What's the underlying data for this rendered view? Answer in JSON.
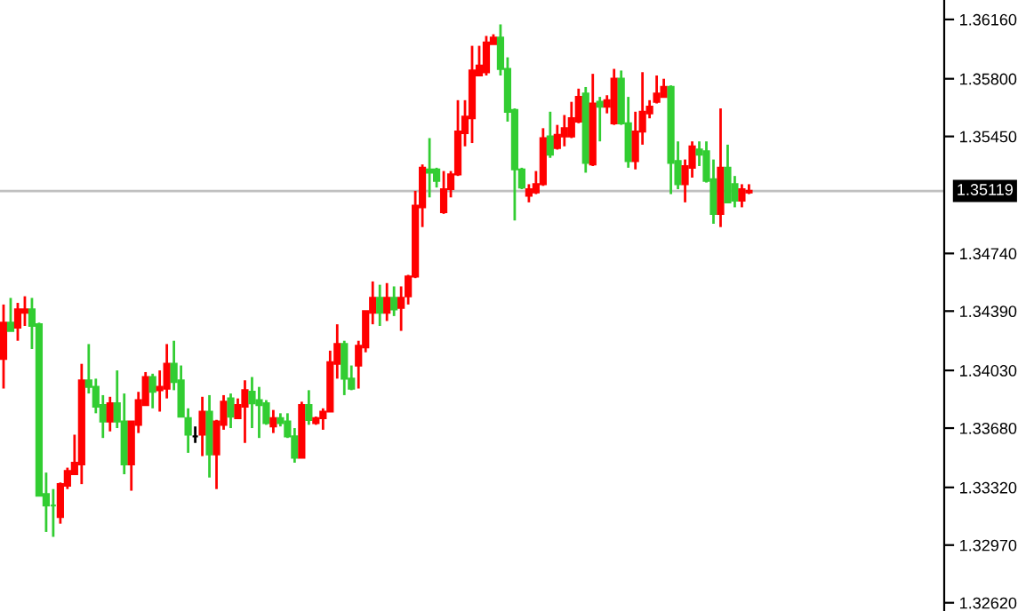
{
  "chart_data": {
    "type": "candlestick",
    "categories": [
      null,
      null,
      null,
      null,
      null,
      null,
      null,
      null,
      null,
      null,
      null,
      null,
      null,
      null,
      null,
      null,
      null,
      null,
      null,
      null,
      null,
      null,
      null,
      null,
      null,
      null,
      null,
      null,
      null,
      null,
      null,
      null,
      null,
      null,
      null,
      null,
      null,
      null,
      null,
      null,
      null,
      null,
      null,
      null,
      null,
      null,
      null,
      null,
      null,
      null,
      null,
      null,
      null,
      null,
      null,
      null,
      null,
      null,
      null,
      null,
      null,
      null,
      null,
      null,
      null,
      null,
      null,
      null,
      null,
      null,
      null,
      null,
      null,
      null,
      null,
      null,
      null,
      null,
      null,
      null,
      null,
      null,
      null,
      null,
      null,
      null,
      null,
      null,
      null,
      null,
      null,
      null,
      null,
      null,
      null,
      null,
      null,
      null,
      null,
      null,
      null,
      null,
      null,
      null,
      null,
      null,
      null,
      null,
      null,
      null,
      null,
      null,
      null,
      null,
      null,
      null,
      null,
      null,
      null,
      null,
      null,
      null,
      null,
      null,
      null,
      null,
      null,
      null,
      null,
      null,
      null,
      null,
      null
    ],
    "ohlc": [
      [
        1.341,
        1.3443,
        1.3392,
        1.3432
      ],
      [
        1.3432,
        1.3447,
        1.3427,
        1.3427
      ],
      [
        1.3429,
        1.3444,
        1.3421,
        1.344
      ],
      [
        1.3438,
        1.3448,
        1.343,
        1.344
      ],
      [
        1.344,
        1.3447,
        1.3416,
        1.343
      ],
      [
        1.3431,
        1.3432,
        1.3327,
        1.3327
      ],
      [
        1.3328,
        1.3341,
        1.3305,
        1.3321
      ],
      [
        1.3321,
        1.3331,
        1.3302,
        1.3321
      ],
      [
        1.3314,
        1.3335,
        1.331,
        1.3334
      ],
      [
        1.3333,
        1.3344,
        1.3331,
        1.3342
      ],
      [
        1.334,
        1.3364,
        1.334,
        1.3347
      ],
      [
        1.3346,
        1.3407,
        1.3334,
        1.3397
      ],
      [
        1.3397,
        1.3419,
        1.3389,
        1.3393
      ],
      [
        1.3393,
        1.3398,
        1.3377,
        1.3381
      ],
      [
        1.3382,
        1.3388,
        1.3362,
        1.3372
      ],
      [
        1.3372,
        1.3387,
        1.3366,
        1.3383
      ],
      [
        1.3383,
        1.3403,
        1.3368,
        1.3372
      ],
      [
        1.3372,
        1.3389,
        1.334,
        1.3346
      ],
      [
        1.3346,
        1.3372,
        1.333,
        1.3372
      ],
      [
        1.337,
        1.339,
        1.3365,
        1.3385
      ],
      [
        1.3382,
        1.3402,
        1.3382,
        1.3399
      ],
      [
        1.3399,
        1.3401,
        1.338,
        1.339
      ],
      [
        1.3391,
        1.3403,
        1.3378,
        1.3393
      ],
      [
        1.3392,
        1.3419,
        1.3386,
        1.3407
      ],
      [
        1.3407,
        1.3421,
        1.3391,
        1.3396
      ],
      [
        1.3397,
        1.3406,
        1.3375,
        1.3375
      ],
      [
        1.3374,
        1.338,
        1.3353,
        1.3364
      ],
      [
        1.3363,
        1.3369,
        1.3359,
        1.3363
      ],
      [
        1.3364,
        1.3387,
        1.3351,
        1.3378
      ],
      [
        1.3378,
        1.3388,
        1.3338,
        1.3352
      ],
      [
        1.3352,
        1.3373,
        1.3331,
        1.3372
      ],
      [
        1.337,
        1.3388,
        1.3367,
        1.3384
      ],
      [
        1.3386,
        1.3389,
        1.3368,
        1.3375
      ],
      [
        1.3374,
        1.3386,
        1.3374,
        1.3382
      ],
      [
        1.3381,
        1.3397,
        1.3359,
        1.3391
      ],
      [
        1.339,
        1.3399,
        1.3368,
        1.3383
      ],
      [
        1.3385,
        1.3393,
        1.3362,
        1.3382
      ],
      [
        1.3383,
        1.3385,
        1.337,
        1.3371
      ],
      [
        1.3369,
        1.3379,
        1.3365,
        1.3374
      ],
      [
        1.3374,
        1.3377,
        1.3369,
        1.3371
      ],
      [
        1.3372,
        1.3377,
        1.3362,
        1.3363
      ],
      [
        1.3363,
        1.3368,
        1.3347,
        1.335
      ],
      [
        1.335,
        1.3384,
        1.335,
        1.3382
      ],
      [
        1.3382,
        1.3391,
        1.337,
        1.3373
      ],
      [
        1.3371,
        1.3375,
        1.337,
        1.3374
      ],
      [
        1.3374,
        1.338,
        1.3367,
        1.3378
      ],
      [
        1.3378,
        1.3415,
        1.3378,
        1.3408
      ],
      [
        1.3407,
        1.3431,
        1.3398,
        1.3419
      ],
      [
        1.3419,
        1.3421,
        1.3388,
        1.3398
      ],
      [
        1.3398,
        1.3406,
        1.3391,
        1.3392
      ],
      [
        1.3406,
        1.3421,
        1.3392,
        1.3418
      ],
      [
        1.3417,
        1.3439,
        1.3414,
        1.3439
      ],
      [
        1.3438,
        1.3457,
        1.3431,
        1.3447
      ],
      [
        1.3447,
        1.3455,
        1.343,
        1.3438
      ],
      [
        1.3438,
        1.3456,
        1.3433,
        1.3447
      ],
      [
        1.3447,
        1.3454,
        1.3436,
        1.344
      ],
      [
        1.3441,
        1.3454,
        1.3427,
        1.3447
      ],
      [
        1.3448,
        1.3461,
        1.3443,
        1.346
      ],
      [
        1.346,
        1.3512,
        1.3459,
        1.3503
      ],
      [
        1.3502,
        1.3528,
        1.349,
        1.3526
      ],
      [
        1.3525,
        1.3544,
        1.3508,
        1.3523
      ],
      [
        1.3525,
        1.3526,
        1.3514,
        1.3518
      ],
      [
        1.3499,
        1.3524,
        1.3498,
        1.3513
      ],
      [
        1.3513,
        1.3524,
        1.3508,
        1.3522
      ],
      [
        1.3522,
        1.3567,
        1.3521,
        1.3548
      ],
      [
        1.3547,
        1.3567,
        1.3539,
        1.3557
      ],
      [
        1.3556,
        1.36,
        1.3541,
        1.3585
      ],
      [
        1.3582,
        1.36,
        1.3582,
        1.3588
      ],
      [
        1.3584,
        1.3606,
        1.3582,
        1.3602
      ],
      [
        1.3601,
        1.3607,
        1.3601,
        1.3605
      ],
      [
        1.3605,
        1.3613,
        1.3582,
        1.3586
      ],
      [
        1.3586,
        1.3593,
        1.3554,
        1.356
      ],
      [
        1.3561,
        1.3562,
        1.3494,
        1.3525
      ],
      [
        1.3525,
        1.3526,
        1.3513,
        1.3514
      ],
      [
        1.3509,
        1.3516,
        1.3505,
        1.3513
      ],
      [
        1.3511,
        1.3524,
        1.351,
        1.3516
      ],
      [
        1.3516,
        1.355,
        1.3515,
        1.3544
      ],
      [
        1.3545,
        1.356,
        1.3532,
        1.3534
      ],
      [
        1.3538,
        1.3552,
        1.3537,
        1.3546
      ],
      [
        1.3545,
        1.3558,
        1.3539,
        1.355
      ],
      [
        1.3545,
        1.3566,
        1.3544,
        1.3556
      ],
      [
        1.3554,
        1.3574,
        1.3553,
        1.3569
      ],
      [
        1.3571,
        1.3575,
        1.3523,
        1.3529
      ],
      [
        1.3528,
        1.3583,
        1.3527,
        1.3565
      ],
      [
        1.3566,
        1.3569,
        1.3542,
        1.3563
      ],
      [
        1.3563,
        1.357,
        1.3559,
        1.3567
      ],
      [
        1.3553,
        1.3586,
        1.3552,
        1.358
      ],
      [
        1.358,
        1.3585,
        1.3552,
        1.3553
      ],
      [
        1.3553,
        1.3569,
        1.3526,
        1.353
      ],
      [
        1.353,
        1.356,
        1.3525,
        1.3548
      ],
      [
        1.3548,
        1.3584,
        1.354,
        1.356
      ],
      [
        1.3559,
        1.3567,
        1.3556,
        1.3563
      ],
      [
        1.3566,
        1.3582,
        1.3565,
        1.3571
      ],
      [
        1.3569,
        1.358,
        1.3569,
        1.3575
      ],
      [
        1.3575,
        1.3576,
        1.351,
        1.3529
      ],
      [
        1.353,
        1.3542,
        1.3513,
        1.3516
      ],
      [
        1.3516,
        1.3531,
        1.3505,
        1.3527
      ],
      [
        1.3526,
        1.3542,
        1.352,
        1.3539
      ],
      [
        1.3537,
        1.3542,
        1.3527,
        1.3534
      ],
      [
        1.3536,
        1.3542,
        1.3517,
        1.3518
      ],
      [
        1.3519,
        1.3531,
        1.3492,
        1.3498
      ],
      [
        1.3498,
        1.3562,
        1.349,
        1.3526
      ],
      [
        1.3526,
        1.354,
        1.3505,
        1.3505
      ],
      [
        1.3516,
        1.3521,
        1.3502,
        1.3506
      ],
      [
        1.3506,
        1.3516,
        1.3502,
        1.3513
      ],
      [
        1.3511,
        1.3516,
        1.351,
        1.3512
      ],
      null,
      null,
      null,
      null,
      null,
      null,
      null,
      null,
      null,
      null,
      null,
      null,
      null,
      null,
      null,
      null,
      null,
      null,
      null,
      null,
      null,
      null,
      null,
      null,
      null,
      null,
      null
    ],
    "colors": [
      "#ff0000",
      "#32cd32",
      "#ff0000",
      "#ff0000",
      "#32cd32",
      "#32cd32",
      "#32cd32",
      "#32cd32",
      "#ff0000",
      "#ff0000",
      "#ff0000",
      "#ff0000",
      "#32cd32",
      "#32cd32",
      "#32cd32",
      "#ff0000",
      "#32cd32",
      "#32cd32",
      "#ff0000",
      "#ff0000",
      "#ff0000",
      "#32cd32",
      "#ff0000",
      "#ff0000",
      "#32cd32",
      "#32cd32",
      "#32cd32",
      "#000000",
      "#ff0000",
      "#32cd32",
      "#ff0000",
      "#ff0000",
      "#32cd32",
      "#ff0000",
      "#ff0000",
      "#32cd32",
      "#32cd32",
      "#32cd32",
      "#ff0000",
      "#32cd32",
      "#32cd32",
      "#32cd32",
      "#ff0000",
      "#32cd32",
      "#ff0000",
      "#ff0000",
      "#ff0000",
      "#ff0000",
      "#32cd32",
      "#32cd32",
      "#ff0000",
      "#ff0000",
      "#ff0000",
      "#32cd32",
      "#ff0000",
      "#32cd32",
      "#ff0000",
      "#ff0000",
      "#ff0000",
      "#ff0000",
      "#32cd32",
      "#32cd32",
      "#ff0000",
      "#ff0000",
      "#ff0000",
      "#ff0000",
      "#ff0000",
      "#ff0000",
      "#ff0000",
      "#ff0000",
      "#32cd32",
      "#32cd32",
      "#32cd32",
      "#32cd32",
      "#ff0000",
      "#ff0000",
      "#ff0000",
      "#32cd32",
      "#ff0000",
      "#ff0000",
      "#ff0000",
      "#ff0000",
      "#32cd32",
      "#ff0000",
      "#32cd32",
      "#ff0000",
      "#ff0000",
      "#32cd32",
      "#32cd32",
      "#ff0000",
      "#ff0000",
      "#ff0000",
      "#ff0000",
      "#ff0000",
      "#32cd32",
      "#32cd32",
      "#ff0000",
      "#ff0000",
      "#32cd32",
      "#32cd32",
      "#32cd32",
      "#ff0000",
      "#32cd32",
      "#32cd32",
      "#ff0000",
      "#ff0000",
      null,
      null,
      null,
      null,
      null,
      null,
      null,
      null,
      null,
      null,
      null,
      null,
      null,
      null,
      null,
      null,
      null,
      null,
      null,
      null,
      null,
      null,
      null,
      null,
      null,
      null,
      null
    ],
    "ylim": [
      1.3257,
      1.36278
    ],
    "yticks": [
      {
        "value": 1.3616,
        "label": "1.36160"
      },
      {
        "value": 1.358,
        "label": "1.35800"
      },
      {
        "value": 1.3545,
        "label": "1.35450"
      },
      {
        "value": 1.3474,
        "label": "1.34740"
      },
      {
        "value": 1.3439,
        "label": "1.34390"
      },
      {
        "value": 1.3403,
        "label": "1.34030"
      },
      {
        "value": 1.3368,
        "label": "1.33680"
      },
      {
        "value": 1.3332,
        "label": "1.33320"
      },
      {
        "value": 1.3297,
        "label": "1.32970"
      },
      {
        "value": 1.3262,
        "label": "1.32620"
      }
    ],
    "ref_lines": [
      {
        "axis": "y",
        "value": 1.35119,
        "label": "1.35119",
        "color": "#c0c0c0"
      }
    ],
    "tick_labels": "y",
    "grid": false,
    "legend": false
  }
}
